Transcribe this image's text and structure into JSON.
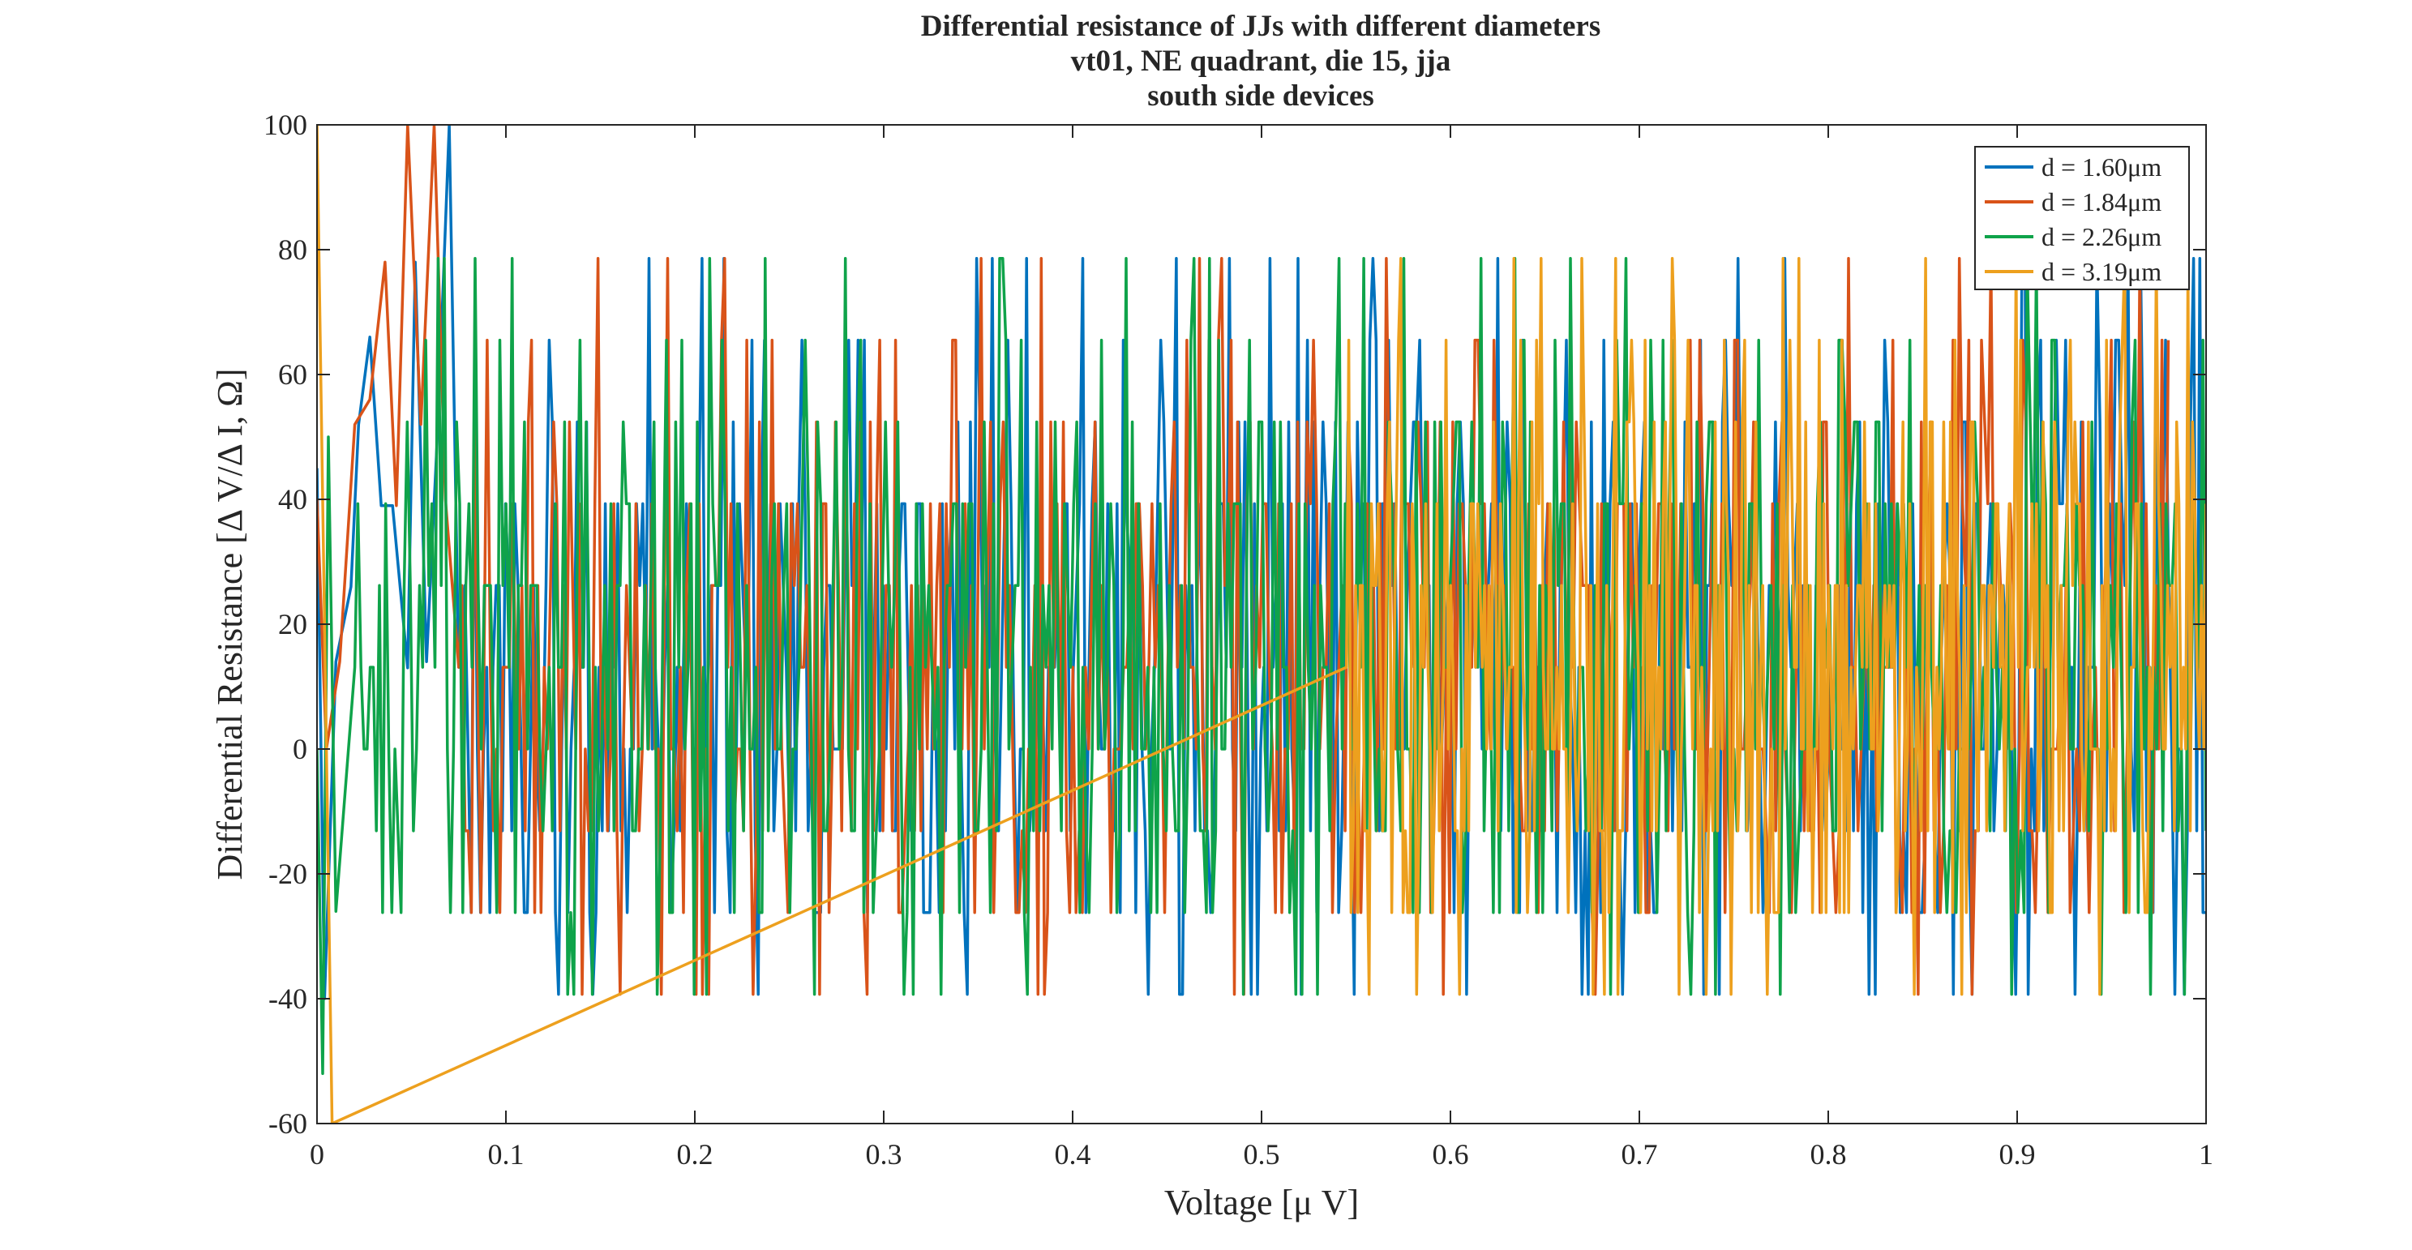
{
  "chart_data": {
    "type": "line",
    "title_lines": [
      "Differential resistance of JJs with different diameters",
      "vt01, NE quadrant, die 15, jja",
      "south side devices"
    ],
    "xlabel": "Voltage [μ V]",
    "ylabel": "Differential Resistance [Δ V/Δ I, Ω]",
    "xlim": [
      0,
      1
    ],
    "ylim": [
      -60,
      100
    ],
    "xticks": [
      0,
      0.1,
      0.2,
      0.3,
      0.4,
      0.5,
      0.6,
      0.7,
      0.8,
      0.9,
      1
    ],
    "xtick_labels": [
      "0",
      "0.1",
      "0.2",
      "0.3",
      "0.4",
      "0.5",
      "0.6",
      "0.7",
      "0.8",
      "0.9",
      "1"
    ],
    "yticks": [
      -60,
      -40,
      -20,
      0,
      20,
      40,
      60,
      80,
      100
    ],
    "ytick_labels": [
      "-60",
      "-40",
      "-20",
      "0",
      "20",
      "40",
      "60",
      "80",
      "100"
    ],
    "grid": false,
    "legend_position": "top-right",
    "series": [
      {
        "name": "d = 1.60μm",
        "color": "#0072BD",
        "x_range": [
          0,
          1
        ],
        "level_step": 13.1,
        "values_note": "noisy, quantized in steps of ~13.1 Ω"
      },
      {
        "name": "d = 1.84μm",
        "color": "#D95319",
        "x_range": [
          0,
          0.98
        ],
        "level_step": 13.1,
        "values_note": "noisy, quantized in steps of ~13.1 Ω"
      },
      {
        "name": "d = 2.26μm",
        "color": "#0FA34A",
        "x_range": [
          0,
          1
        ],
        "level_step": 13.1,
        "values_note": "noisy, quantized in steps of ~13.1 Ω"
      },
      {
        "name": "d = 3.19μm",
        "color": "#EDA01E",
        "x_range": [
          0.545,
          1
        ],
        "level_step": 13.1,
        "values_note": "noisy, quantized in steps of ~13.1 Ω; also a spike near x=0"
      }
    ]
  }
}
